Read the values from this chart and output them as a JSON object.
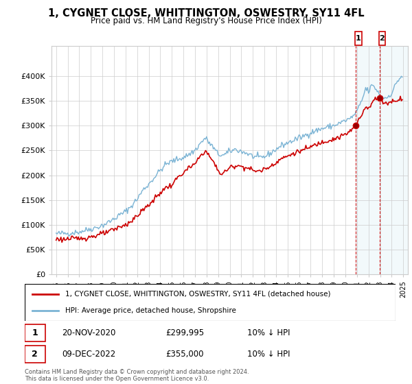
{
  "title": "1, CYGNET CLOSE, WHITTINGTON, OSWESTRY, SY11 4FL",
  "subtitle": "Price paid vs. HM Land Registry's House Price Index (HPI)",
  "ylim": [
    0,
    460000
  ],
  "legend_line1": "1, CYGNET CLOSE, WHITTINGTON, OSWESTRY, SY11 4FL (detached house)",
  "legend_line2": "HPI: Average price, detached house, Shropshire",
  "note1_date": "20-NOV-2020",
  "note1_price": "£299,995",
  "note1_hpi": "10% ↓ HPI",
  "note2_date": "09-DEC-2022",
  "note2_price": "£355,000",
  "note2_hpi": "10% ↓ HPI",
  "copyright": "Contains HM Land Registry data © Crown copyright and database right 2024.\nThis data is licensed under the Open Government Licence v3.0.",
  "red_color": "#cc0000",
  "blue_color": "#7ab3d4",
  "shade_color": "#ddeeff",
  "marker1_x": 2020.9,
  "marker1_y": 299995,
  "marker2_x": 2022.95,
  "marker2_y": 355000,
  "xlim_left": 1994.6,
  "xlim_right": 2025.4
}
